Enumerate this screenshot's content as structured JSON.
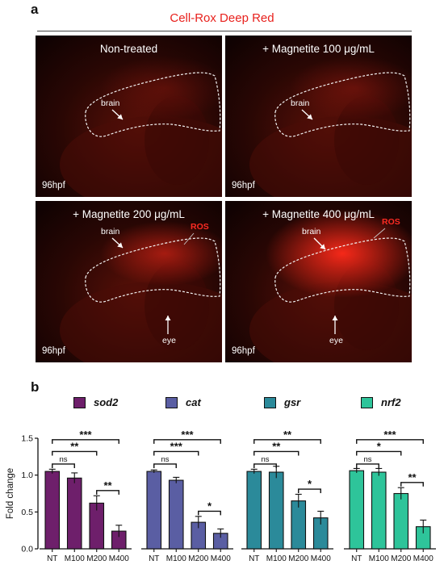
{
  "panel_a": {
    "letter": "a",
    "title": "Cell-Rox Deep Red",
    "images": [
      {
        "title": "Non-treated",
        "stage": "96hpf",
        "brain_label": "brain",
        "ros_label": "",
        "eye_label": ""
      },
      {
        "title": "+ Magnetite 100 μg/mL",
        "stage": "96hpf",
        "brain_label": "brain",
        "ros_label": "",
        "eye_label": ""
      },
      {
        "title": "+ Magnetite 200 μg/mL",
        "stage": "96hpf",
        "brain_label": "brain",
        "ros_label": "ROS",
        "eye_label": "eye"
      },
      {
        "title": "+ Magnetite 400 μg/mL",
        "stage": "96hpf",
        "brain_label": "brain",
        "ros_label": "ROS",
        "eye_label": "eye"
      }
    ]
  },
  "panel_b": {
    "letter": "b",
    "legend": [
      {
        "label": "sod2",
        "color": "#6e1f6b"
      },
      {
        "label": "cat",
        "color": "#5a5ea3"
      },
      {
        "label": "gsr",
        "color": "#2b8a9a"
      },
      {
        "label": "nrf2",
        "color": "#2ec49a"
      }
    ]
  },
  "chart_data": {
    "type": "bar",
    "ylabel": "Fold change",
    "ylim": [
      0.0,
      1.5
    ],
    "yticks": [
      "0.0",
      "0.5",
      "1.0",
      "1.5"
    ],
    "categories": [
      "NT",
      "M100",
      "M200",
      "M400"
    ],
    "series": [
      {
        "name": "sod2",
        "color": "#6e1f6b",
        "values": [
          1.05,
          0.96,
          0.62,
          0.24
        ],
        "errors": [
          0.03,
          0.07,
          0.1,
          0.08
        ],
        "comparisons": [
          {
            "from": 0,
            "to": 3,
            "label": "***"
          },
          {
            "from": 0,
            "to": 2,
            "label": "**"
          },
          {
            "from": 0,
            "to": 1,
            "label": "ns"
          },
          {
            "from": 2,
            "to": 3,
            "label": "**"
          }
        ]
      },
      {
        "name": "cat",
        "color": "#5a5ea3",
        "values": [
          1.05,
          0.93,
          0.36,
          0.21
        ],
        "errors": [
          0.02,
          0.04,
          0.08,
          0.06
        ],
        "comparisons": [
          {
            "from": 0,
            "to": 3,
            "label": "***"
          },
          {
            "from": 0,
            "to": 2,
            "label": "***"
          },
          {
            "from": 0,
            "to": 1,
            "label": "ns"
          },
          {
            "from": 2,
            "to": 3,
            "label": "*"
          }
        ]
      },
      {
        "name": "gsr",
        "color": "#2b8a9a",
        "values": [
          1.05,
          1.04,
          0.65,
          0.42
        ],
        "errors": [
          0.03,
          0.08,
          0.09,
          0.09
        ],
        "comparisons": [
          {
            "from": 0,
            "to": 3,
            "label": "**"
          },
          {
            "from": 0,
            "to": 2,
            "label": "**"
          },
          {
            "from": 0,
            "to": 1,
            "label": "ns"
          },
          {
            "from": 2,
            "to": 3,
            "label": "*"
          }
        ]
      },
      {
        "name": "nrf2",
        "color": "#2ec49a",
        "values": [
          1.06,
          1.04,
          0.75,
          0.3
        ],
        "errors": [
          0.03,
          0.05,
          0.08,
          0.09
        ],
        "comparisons": [
          {
            "from": 0,
            "to": 3,
            "label": "***"
          },
          {
            "from": 0,
            "to": 2,
            "label": "*"
          },
          {
            "from": 0,
            "to": 1,
            "label": "ns"
          },
          {
            "from": 2,
            "to": 3,
            "label": "**"
          }
        ]
      }
    ]
  }
}
